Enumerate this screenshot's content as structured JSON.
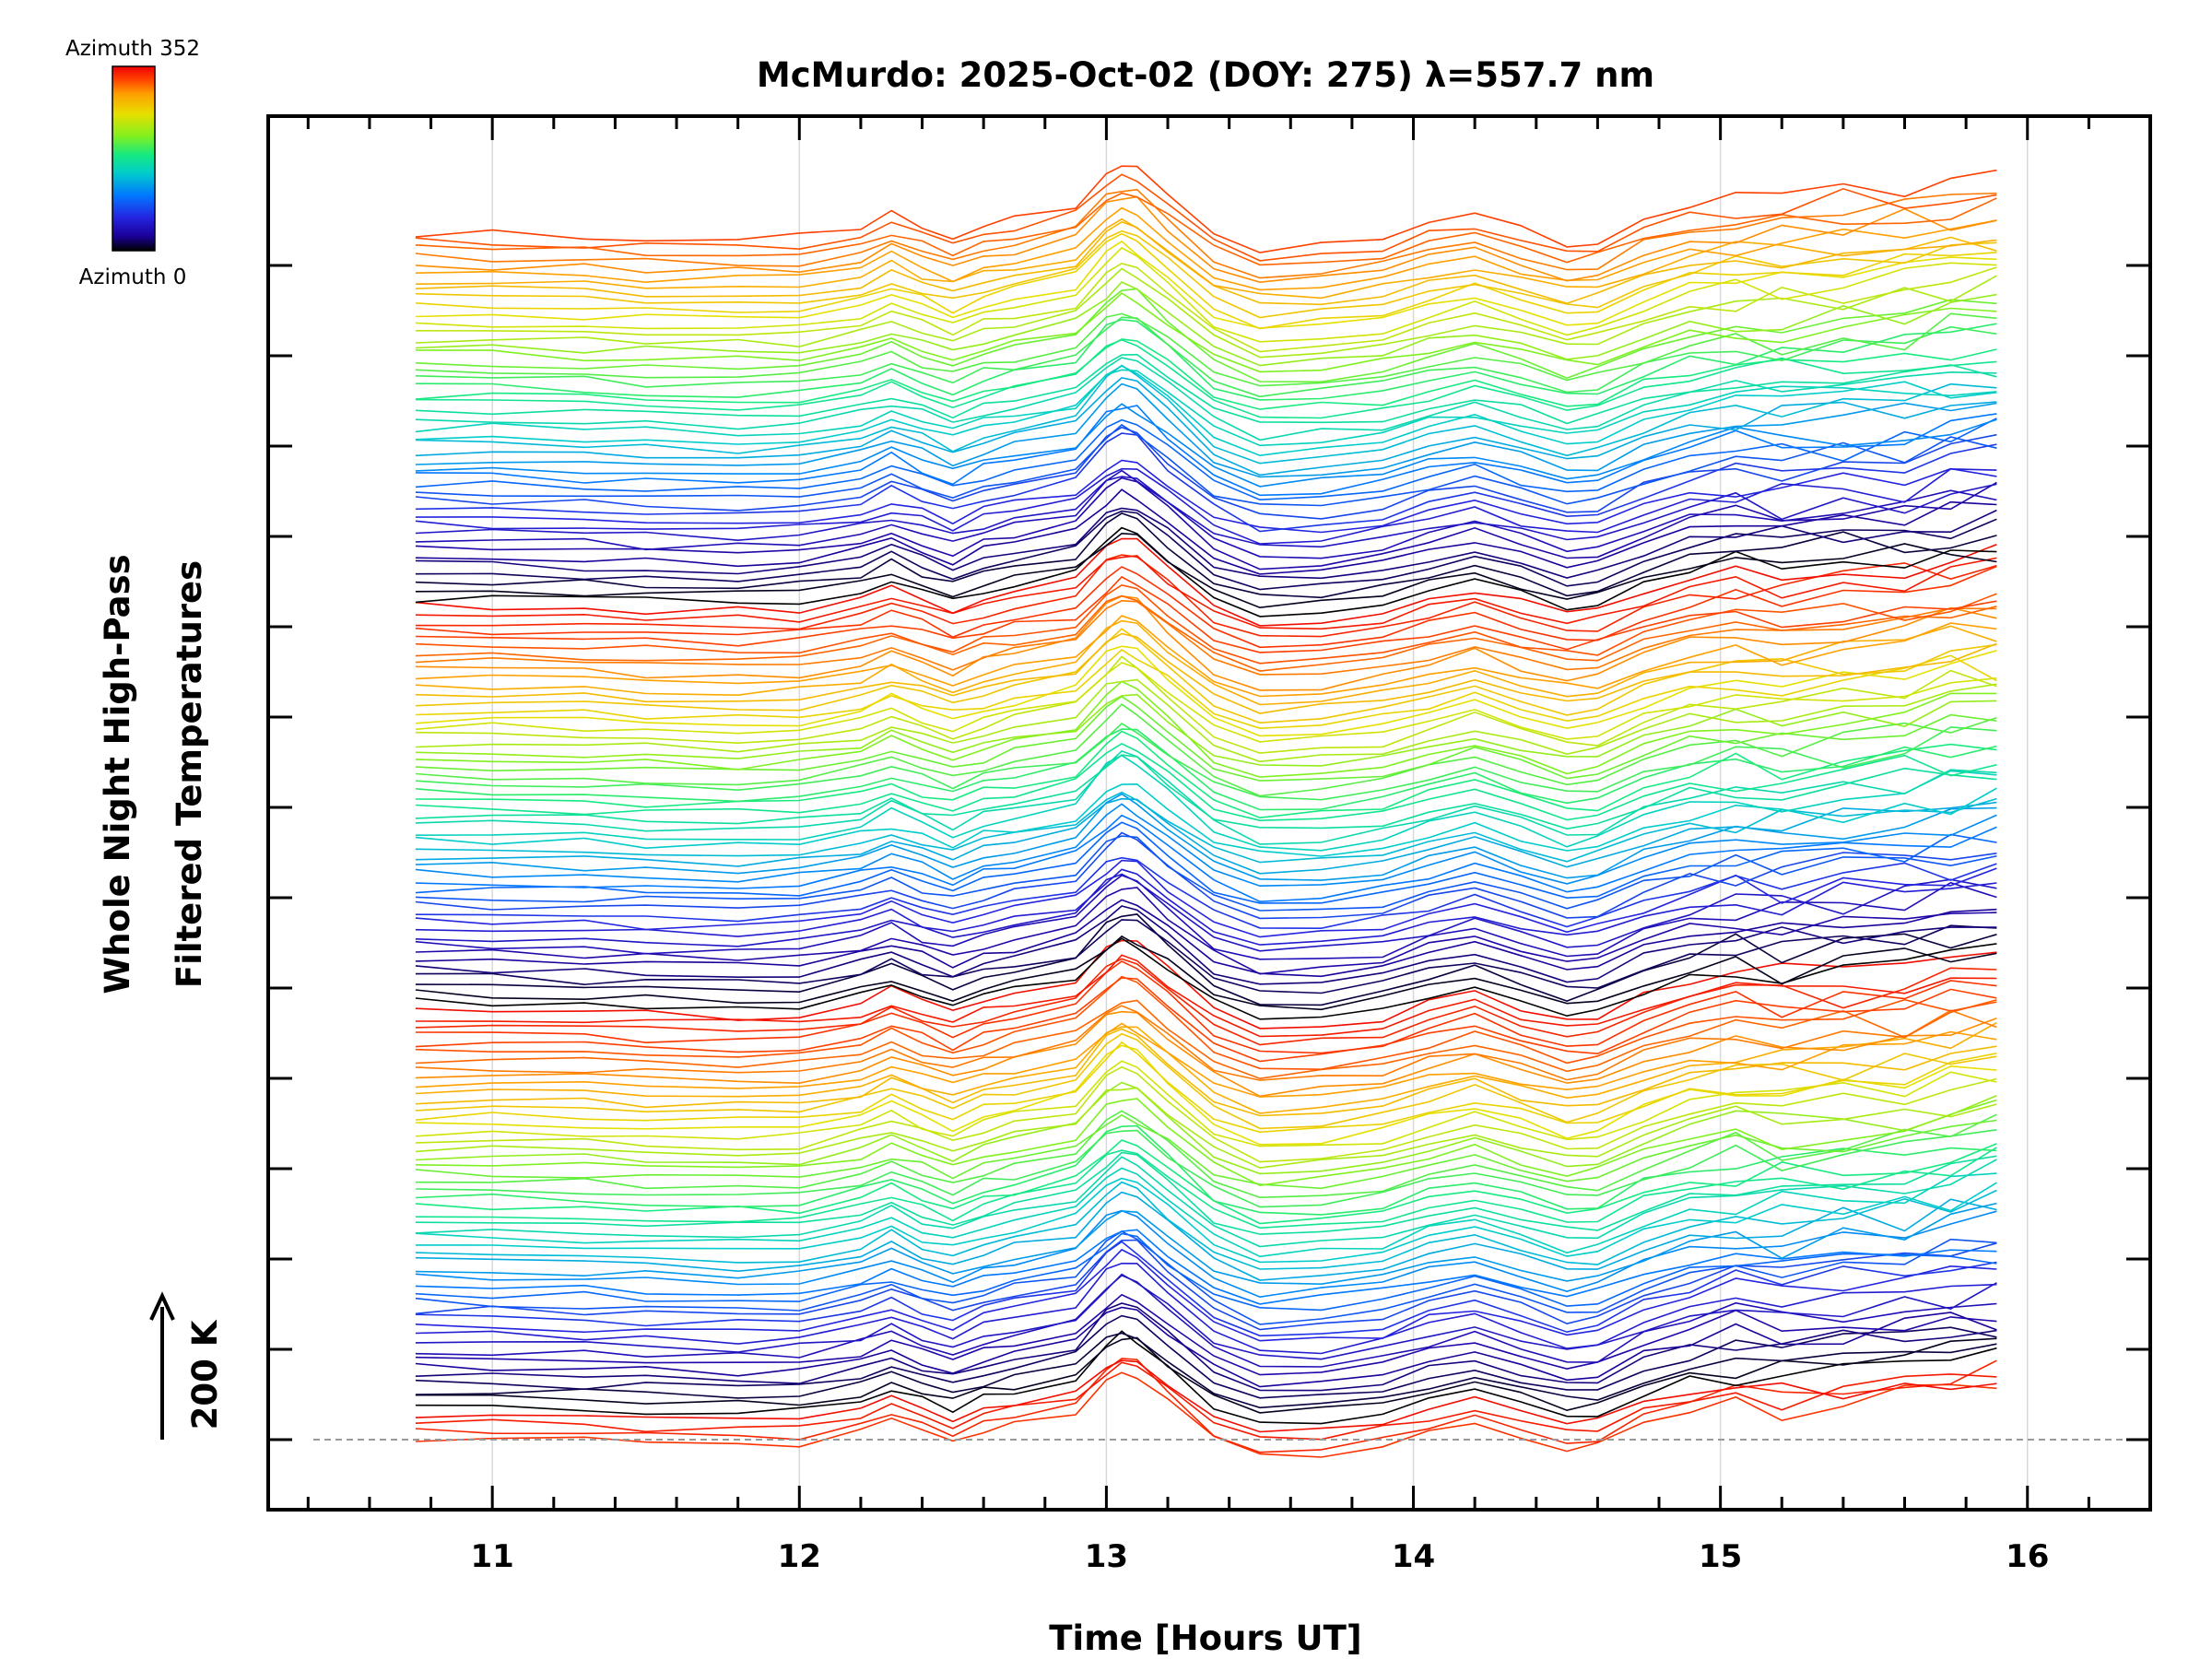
{
  "chart_data": {
    "type": "line",
    "title": "McMurdo: 2025-Oct-02 (DOY: 275) λ=557.7 nm",
    "xlabel": "Time [Hours UT]",
    "ylabel_line1": "Whole Night High-Pass",
    "ylabel_line2": "Filtered Temperatures",
    "xlim": [
      10.27,
      16.4
    ],
    "x_ticks": [
      11,
      12,
      13,
      14,
      15,
      16
    ],
    "x_tick_labels": [
      "11",
      "12",
      "13",
      "14",
      "15",
      "16"
    ],
    "scale_bar_label": "200 K",
    "colorbar": {
      "top_label": "Azimuth  352",
      "bottom_label": "Azimuth  0",
      "azimuth_range": [
        0,
        352
      ]
    },
    "series_count": 150,
    "stacked_offset_step": 0.55,
    "time_points": [
      10.75,
      11.0,
      11.3,
      11.5,
      11.8,
      12.0,
      12.2,
      12.3,
      12.4,
      12.5,
      12.6,
      12.7,
      12.9,
      13.0,
      13.05,
      13.1,
      13.2,
      13.35,
      13.5,
      13.7,
      13.9,
      14.05,
      14.2,
      14.35,
      14.5,
      14.6,
      14.75,
      14.9,
      15.05,
      15.2,
      15.4,
      15.6,
      15.75,
      15.9
    ],
    "mean_profile_K": [
      0,
      0,
      -3,
      -6,
      -8,
      -6,
      10,
      28,
      10,
      -5,
      12,
      22,
      40,
      85,
      100,
      92,
      55,
      0,
      -25,
      -20,
      -10,
      10,
      25,
      5,
      -15,
      -10,
      20,
      40,
      50,
      45,
      55,
      60,
      70,
      80
    ],
    "colorbar_stops": [
      "#000000",
      "#1c009a",
      "#2424e0",
      "#0078ff",
      "#00cccc",
      "#16ea80",
      "#80f020",
      "#e6e000",
      "#ffa000",
      "#ff4000",
      "#ee0000"
    ],
    "baseline_line_color": "#9a9a9a"
  }
}
